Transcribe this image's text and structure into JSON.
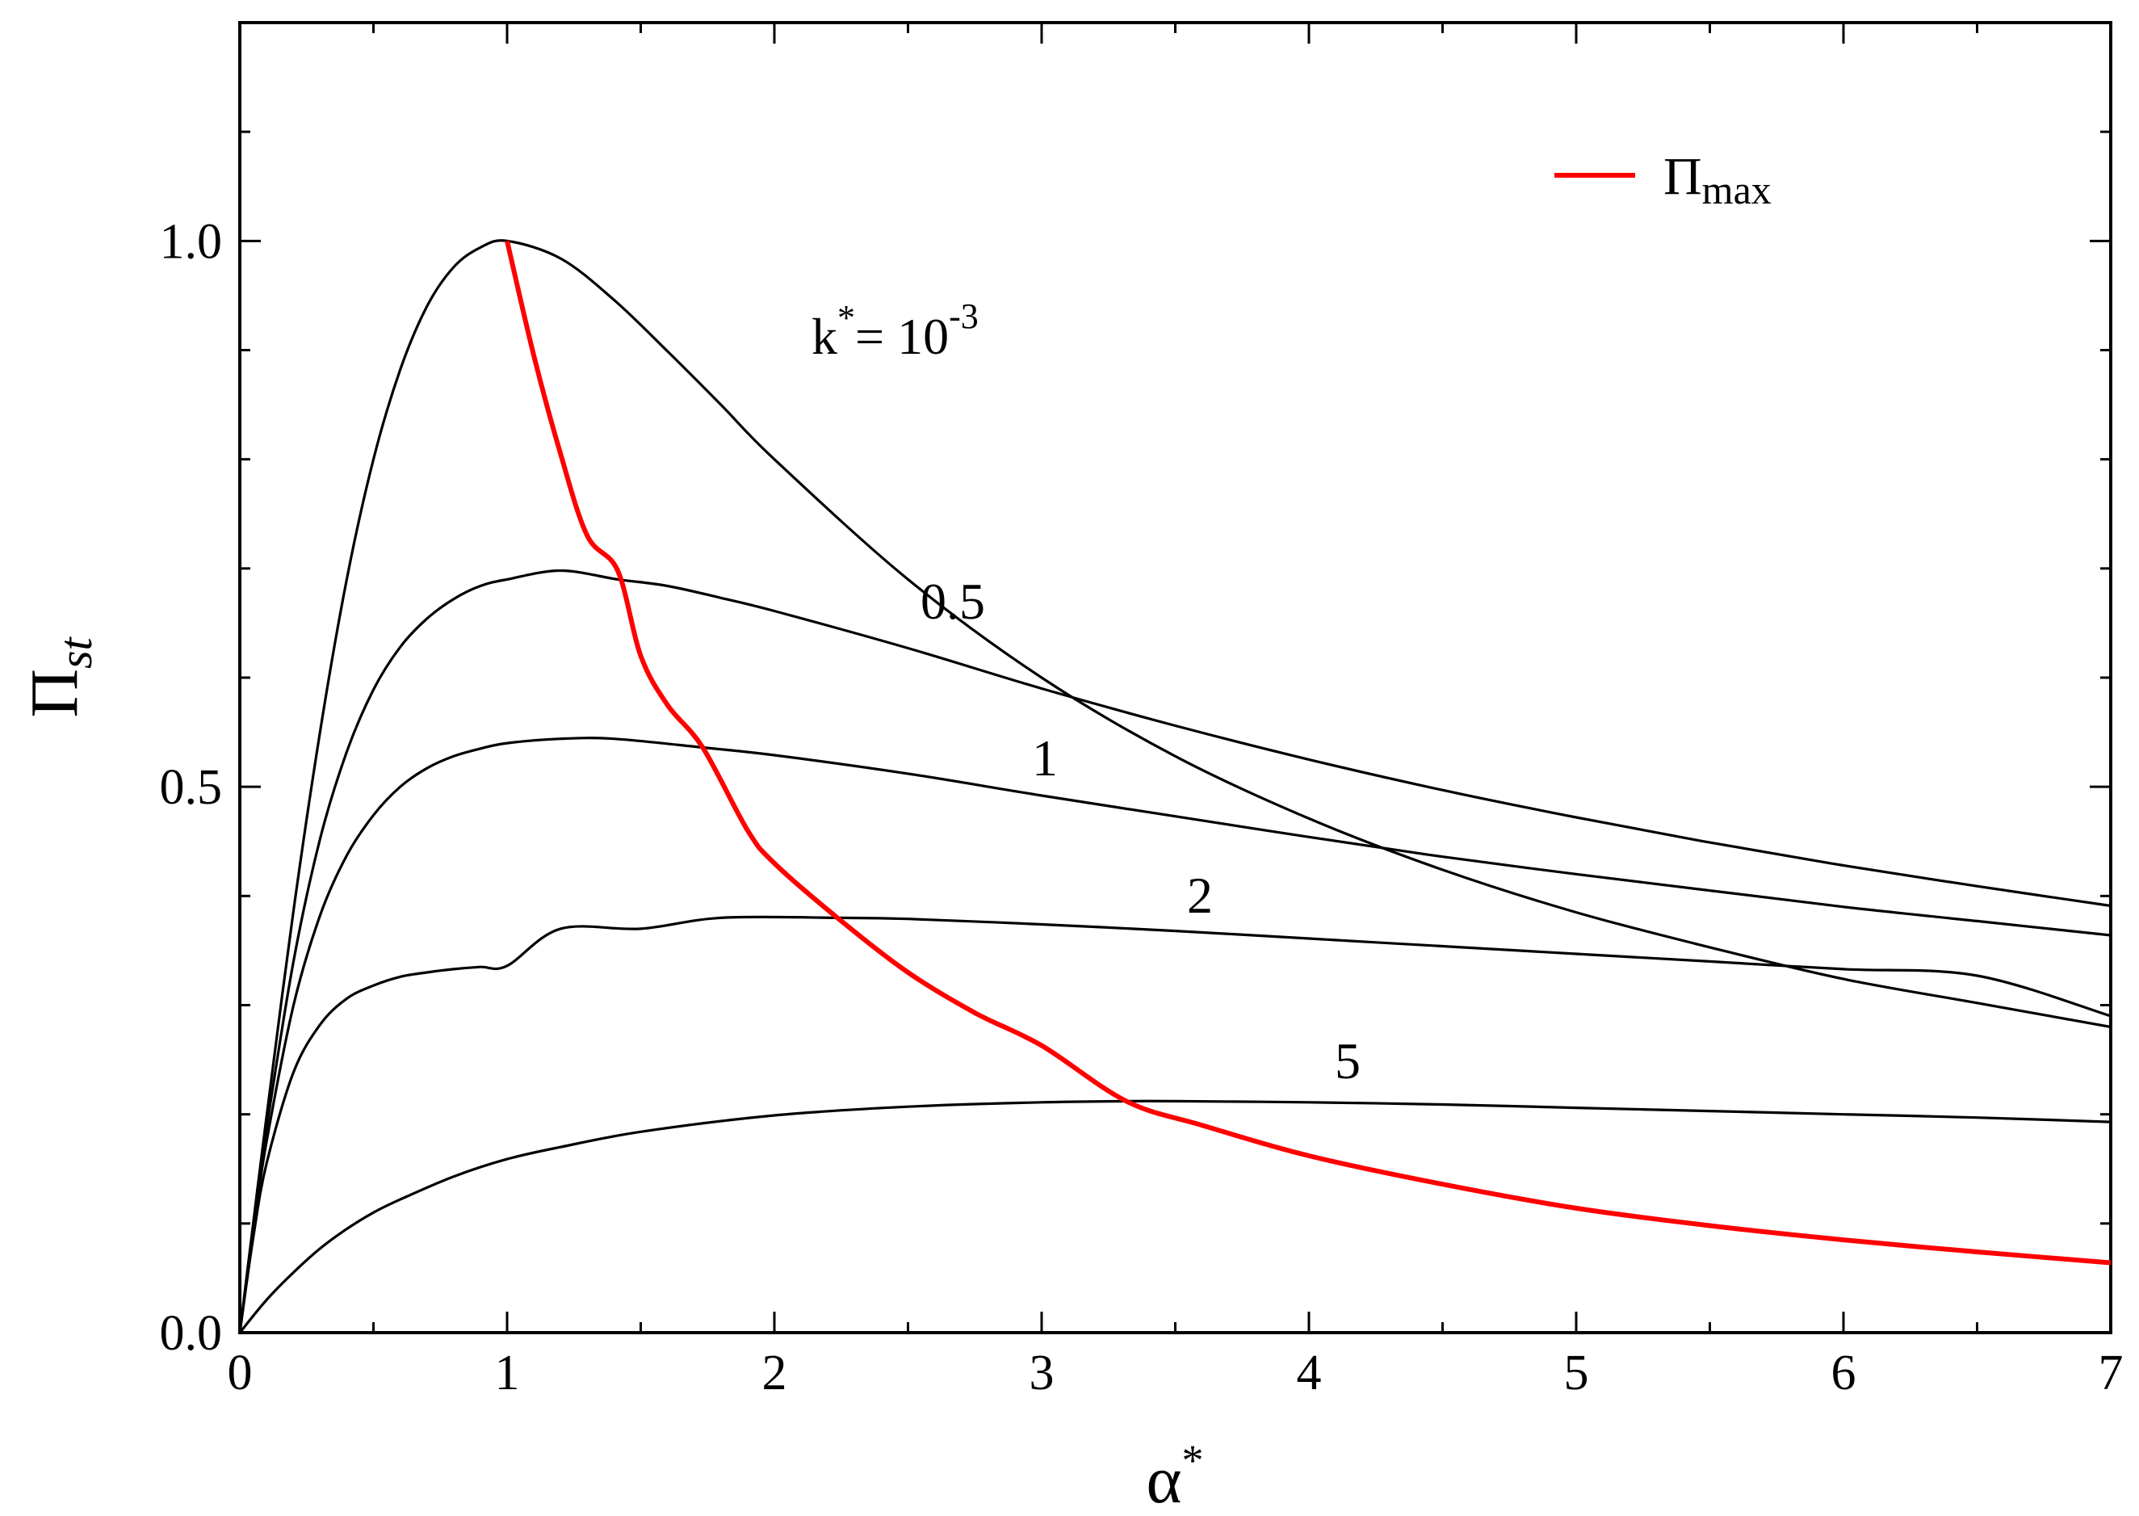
{
  "chart_data": {
    "type": "line",
    "xlabel": "α",
    "xlabel_sup": "*",
    "ylabel": "Π",
    "ylabel_sub": "st",
    "xlim": [
      0,
      7
    ],
    "ylim": [
      0,
      1.2
    ],
    "grid": false,
    "x_ticks": [
      0,
      1,
      2,
      3,
      4,
      5,
      6,
      7
    ],
    "x_tick_labels": [
      "0",
      "1",
      "2",
      "3",
      "4",
      "5",
      "6",
      "7"
    ],
    "x_minor_step": 0.5,
    "y_ticks": [
      0.0,
      0.5,
      1.0
    ],
    "y_tick_labels": [
      "0.0",
      "0.5",
      "1.0"
    ],
    "y_minor_step": 0.1,
    "series": [
      {
        "curve_label": "10",
        "curve_label_prefix": "k",
        "curve_label_sup1": "*",
        "curve_label_sep": "= ",
        "curve_label_sup2": "-3",
        "color": "#000000",
        "x": [
          0,
          0.05,
          0.1,
          0.2,
          0.3,
          0.4,
          0.5,
          0.6,
          0.7,
          0.8,
          0.9,
          1.0,
          1.2,
          1.4,
          1.6,
          1.8,
          2.0,
          2.5,
          3.0,
          3.5,
          4.0,
          4.5,
          5.0,
          5.5,
          6.0,
          6.5,
          7.0
        ],
        "y": [
          0,
          0.1,
          0.198,
          0.385,
          0.55,
          0.69,
          0.8,
          0.882,
          0.94,
          0.976,
          0.994,
          1.0,
          0.984,
          0.946,
          0.899,
          0.85,
          0.8,
          0.69,
          0.6,
          0.528,
          0.471,
          0.424,
          0.385,
          0.353,
          0.324,
          0.302,
          0.28
        ]
      },
      {
        "curve_label": "0.5",
        "color": "#000000",
        "x": [
          0,
          0.05,
          0.1,
          0.2,
          0.3,
          0.4,
          0.5,
          0.6,
          0.7,
          0.8,
          0.9,
          1.0,
          1.2,
          1.414,
          1.6,
          1.8,
          2.0,
          2.5,
          3.0,
          3.5,
          4.0,
          4.5,
          5.0,
          5.5,
          6.0,
          6.5,
          7.0
        ],
        "y": [
          0,
          0.097,
          0.187,
          0.339,
          0.452,
          0.532,
          0.589,
          0.628,
          0.654,
          0.672,
          0.684,
          0.69,
          0.698,
          0.69,
          0.684,
          0.673,
          0.661,
          0.627,
          0.59,
          0.556,
          0.525,
          0.497,
          0.472,
          0.449,
          0.428,
          0.409,
          0.391
        ]
      },
      {
        "curve_label": "1",
        "color": "#000000",
        "x": [
          0,
          0.05,
          0.1,
          0.2,
          0.3,
          0.4,
          0.5,
          0.6,
          0.7,
          0.8,
          0.9,
          1.0,
          1.2,
          1.4,
          1.732,
          2.0,
          2.5,
          3.0,
          3.5,
          4.0,
          4.5,
          5.0,
          5.5,
          6.0,
          6.5,
          7.0
        ],
        "y": [
          0,
          0.094,
          0.175,
          0.299,
          0.382,
          0.437,
          0.474,
          0.5,
          0.517,
          0.528,
          0.535,
          0.54,
          0.544,
          0.544,
          0.536,
          0.529,
          0.512,
          0.492,
          0.473,
          0.454,
          0.436,
          0.42,
          0.405,
          0.39,
          0.377,
          0.364
        ]
      },
      {
        "curve_label": "2",
        "color": "#000000",
        "x": [
          0,
          0.05,
          0.1,
          0.2,
          0.3,
          0.4,
          0.5,
          0.6,
          0.7,
          0.8,
          0.9,
          1.0,
          1.2,
          1.5,
          1.8,
          2.236,
          2.5,
          3.0,
          3.5,
          4.0,
          4.5,
          5.0,
          5.5,
          6.0,
          6.5,
          7.0
        ],
        "y": [
          0,
          0.087,
          0.155,
          0.238,
          0.282,
          0.306,
          0.318,
          0.326,
          0.33,
          0.333,
          0.335,
          0.336,
          0.37,
          0.37,
          0.38,
          0.38,
          0.379,
          0.374,
          0.368,
          0.361,
          0.354,
          0.347,
          0.34,
          0.333,
          0.327,
          0.29
        ]
      },
      {
        "curve_label": "5",
        "color": "#000000",
        "x": [
          0,
          0.1,
          0.2,
          0.3,
          0.4,
          0.5,
          0.6,
          0.8,
          1.0,
          1.2,
          1.5,
          2.0,
          2.5,
          3.0,
          3.317,
          3.5,
          4.0,
          4.5,
          5.0,
          5.5,
          6.0,
          6.5,
          7.0
        ],
        "y": [
          0,
          0.03,
          0.055,
          0.077,
          0.095,
          0.11,
          0.122,
          0.143,
          0.159,
          0.17,
          0.184,
          0.199,
          0.207,
          0.211,
          0.212,
          0.212,
          0.211,
          0.209,
          0.206,
          0.203,
          0.2,
          0.197,
          0.193
        ]
      },
      {
        "name": "Π",
        "name_sub": "max",
        "color": "#ff0000",
        "x": [
          1.0,
          1.1,
          1.2,
          1.3,
          1.414,
          1.5,
          1.6,
          1.732,
          1.9,
          2.0,
          2.236,
          2.5,
          2.75,
          3.0,
          3.317,
          3.6,
          4.0,
          4.5,
          5.0,
          5.5,
          6.0,
          6.5,
          7.0
        ],
        "y": [
          1.0,
          0.895,
          0.805,
          0.73,
          0.698,
          0.62,
          0.575,
          0.536,
          0.46,
          0.43,
          0.38,
          0.33,
          0.293,
          0.263,
          0.212,
          0.19,
          0.162,
          0.136,
          0.114,
          0.098,
          0.085,
          0.074,
          0.064
        ]
      }
    ]
  }
}
